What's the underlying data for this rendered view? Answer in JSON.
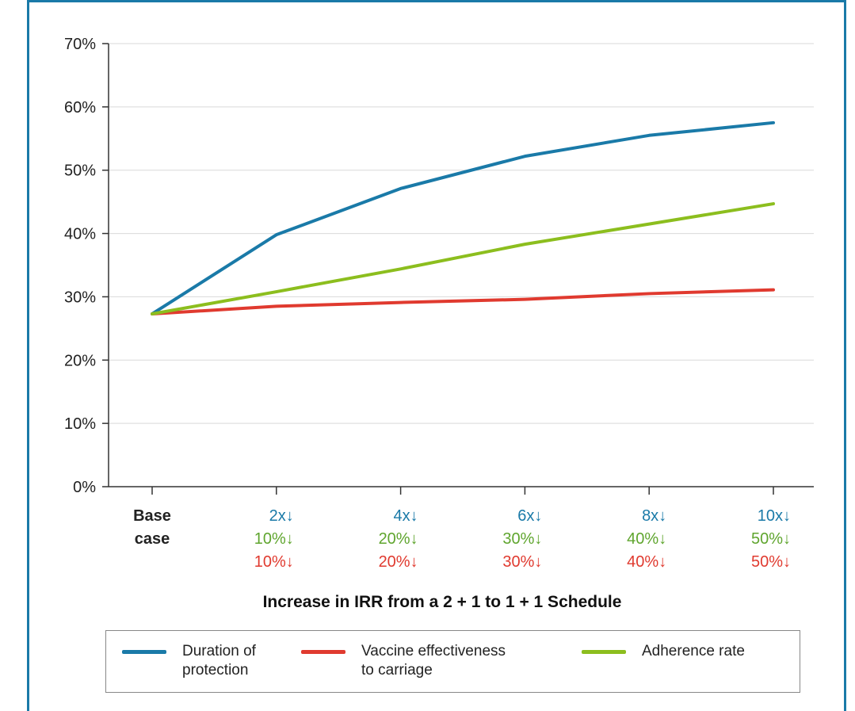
{
  "chart_data": {
    "type": "line",
    "title": "",
    "xlabel": "Increase in IRR from a 2 + 1 to 1 + 1 Schedule",
    "ylabel": "",
    "ylim": [
      0,
      70
    ],
    "yticks": [
      "0%",
      "10%",
      "20%",
      "30%",
      "40%",
      "50%",
      "60%",
      "70%"
    ],
    "grid": "horizontal",
    "legend_position": "bottom",
    "categories": [
      {
        "lines": [
          {
            "text": "Base",
            "color": "#222222",
            "bold": true
          },
          {
            "text": "case",
            "color": "#222222",
            "bold": true
          },
          {
            "text": "",
            "color": "#222222",
            "bold": true
          }
        ]
      },
      {
        "lines": [
          {
            "text": "2x",
            "color": "#1a7aa8"
          },
          {
            "text": "10%",
            "color": "#5fa52e"
          },
          {
            "text": "10%",
            "color": "#e03a2f"
          }
        ]
      },
      {
        "lines": [
          {
            "text": "4x",
            "color": "#1a7aa8"
          },
          {
            "text": "20%",
            "color": "#5fa52e"
          },
          {
            "text": "20%",
            "color": "#e03a2f"
          }
        ]
      },
      {
        "lines": [
          {
            "text": "6x",
            "color": "#1a7aa8"
          },
          {
            "text": "30%",
            "color": "#5fa52e"
          },
          {
            "text": "30%",
            "color": "#e03a2f"
          }
        ]
      },
      {
        "lines": [
          {
            "text": "8x",
            "color": "#1a7aa8"
          },
          {
            "text": "40%",
            "color": "#5fa52e"
          },
          {
            "text": "40%",
            "color": "#e03a2f"
          }
        ]
      },
      {
        "lines": [
          {
            "text": "10x",
            "color": "#1a7aa8"
          },
          {
            "text": "50%",
            "color": "#5fa52e"
          },
          {
            "text": "50%",
            "color": "#e03a2f"
          }
        ]
      }
    ],
    "down_arrow": "↓",
    "series": [
      {
        "name": "Duration of\nprotection",
        "color": "#1a7aa8",
        "values": [
          27.3,
          39.8,
          47.1,
          52.2,
          55.5,
          57.5
        ]
      },
      {
        "name": "Vaccine effectiveness\nto carriage",
        "color": "#e03a2f",
        "values": [
          27.3,
          28.5,
          29.1,
          29.6,
          30.5,
          31.1
        ]
      },
      {
        "name": "Adherence rate",
        "color": "#8cbe1e",
        "values": [
          27.3,
          30.8,
          34.4,
          38.3,
          41.5,
          44.7
        ]
      }
    ]
  }
}
